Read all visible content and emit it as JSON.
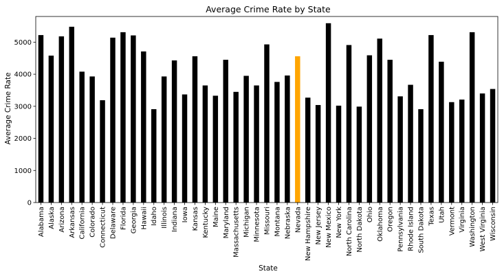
{
  "chart_data": {
    "type": "bar",
    "title": "Average Crime Rate by State",
    "xlabel": "State",
    "ylabel": "Average Crime Rate",
    "ylim": [
      0,
      5800
    ],
    "yticks": [
      0,
      1000,
      2000,
      3000,
      4000,
      5000
    ],
    "grid": false,
    "legend": "none",
    "bar_color": "#000000",
    "highlight_color": "#ffa500",
    "highlight_category": "Nevada",
    "categories": [
      "Alabama",
      "Alaska",
      "Arizona",
      "Arkansas",
      "California",
      "Colorado",
      "Connecticut",
      "Delaware",
      "Florida",
      "Georgia",
      "Hawaii",
      "Idaho",
      "Illinois",
      "Indiana",
      "Iowa",
      "Kansas",
      "Kentucky",
      "Maine",
      "Maryland",
      "Massachusetts",
      "Michigan",
      "Minnesota",
      "Missouri",
      "Montana",
      "Nebraska",
      "Nevada",
      "New Hampshire",
      "New Jersey",
      "New Mexico",
      "New York",
      "North Carolina",
      "North Dakota",
      "Ohio",
      "Oklahoma",
      "Oregon",
      "Pennsylvania",
      "Rhode Island",
      "South Dakota",
      "Texas",
      "Utah",
      "Vermont",
      "Virginia",
      "Washington",
      "West Virginia",
      "Wisconsin"
    ],
    "values": [
      5220,
      4580,
      5180,
      5480,
      4080,
      3930,
      3190,
      5140,
      5310,
      5210,
      4710,
      2910,
      3930,
      4430,
      3370,
      4560,
      3650,
      3330,
      4450,
      3450,
      3950,
      3650,
      4930,
      3760,
      3960,
      4560,
      3270,
      3040,
      5590,
      3020,
      4910,
      2990,
      4590,
      5110,
      4450,
      3310,
      3670,
      2910,
      5220,
      4390,
      3130,
      3210,
      5310,
      3400,
      3540
    ]
  }
}
